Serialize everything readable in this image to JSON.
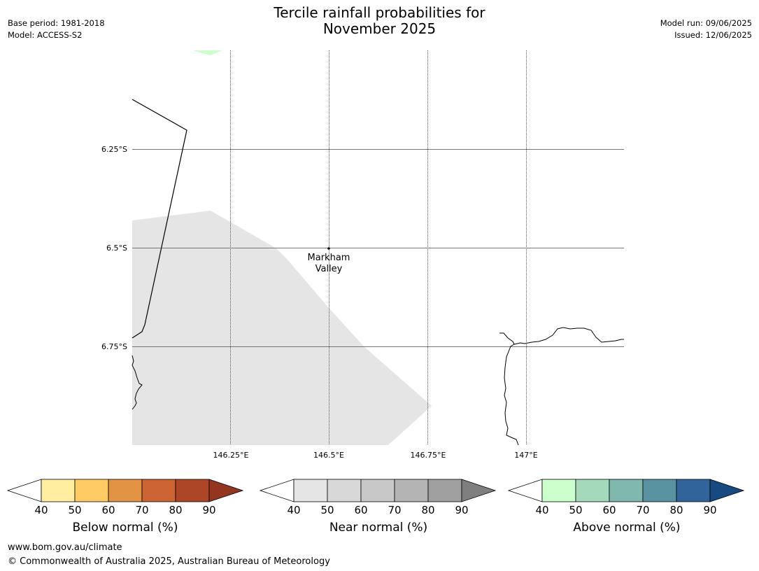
{
  "header": {
    "title_line1": "Tercile rainfall probabilities for",
    "title_line2": "November 2025",
    "base_period": "Base period: 1981-2018",
    "model": "Model: ACCESS-S2",
    "model_run": "Model run: 09/06/2025",
    "issued": "Issued: 12/06/2025"
  },
  "map": {
    "lat_labels": [
      "6.25°S",
      "6.5°S",
      "6.75°S"
    ],
    "lon_labels": [
      "146.25°E",
      "146.5°E",
      "146.75°E",
      "147°E"
    ],
    "place": {
      "name_line1": "Markham",
      "name_line2": "Valley"
    },
    "colors": {
      "near_normal_40": "#e5e5e5",
      "above_normal_40": "#ccffcc",
      "coastline": "#000000",
      "gridline": "#555555"
    }
  },
  "legends": [
    {
      "label": "Below normal (%)",
      "ticks": [
        "40",
        "50",
        "60",
        "70",
        "80",
        "90"
      ],
      "colors": [
        "#ffeea0",
        "#fecb64",
        "#e29343",
        "#cc6434",
        "#ac4626",
        "#943520"
      ]
    },
    {
      "label": "Near normal (%)",
      "ticks": [
        "40",
        "50",
        "60",
        "70",
        "80",
        "90"
      ],
      "colors": [
        "#e5e5e5",
        "#d8d8d8",
        "#c8c8c8",
        "#b4b4b4",
        "#a0a0a0",
        "#7f7f7f"
      ]
    },
    {
      "label": "Above normal (%)",
      "ticks": [
        "40",
        "50",
        "60",
        "70",
        "80",
        "90"
      ],
      "colors": [
        "#ccffcc",
        "#a4dabb",
        "#80b7ae",
        "#5992a0",
        "#31649a",
        "#164a80"
      ]
    }
  ],
  "footer": {
    "website": "www.bom.gov.au/climate",
    "copyright": "© Commonwealth of Australia 2025, Australian Bureau of Meteorology"
  }
}
